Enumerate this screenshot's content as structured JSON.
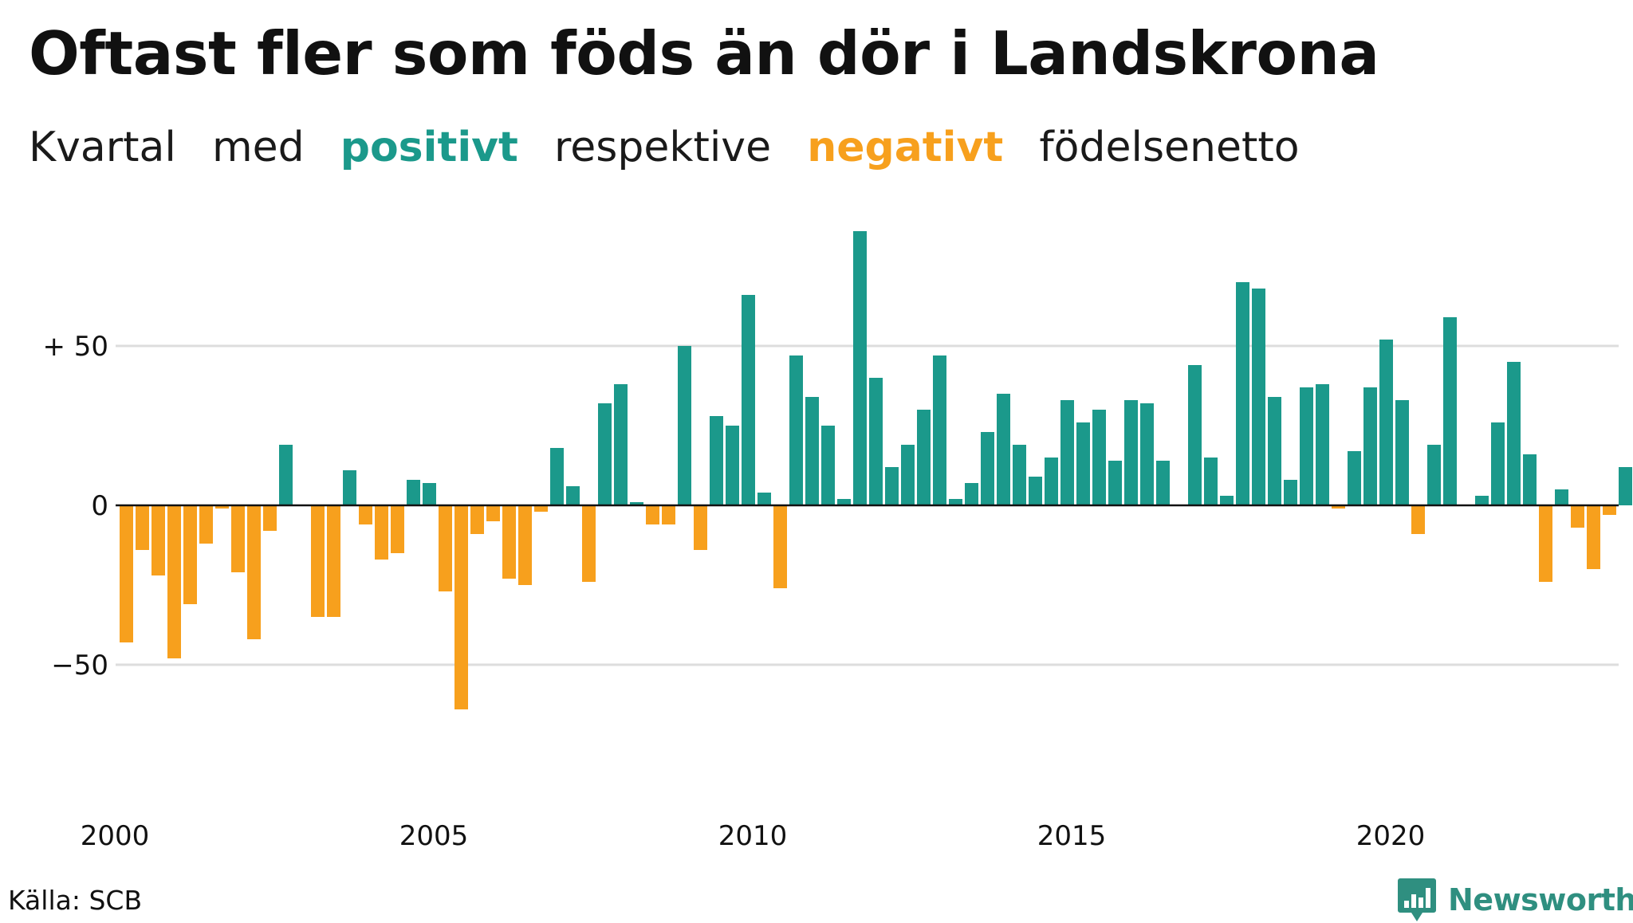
{
  "title": "Oftast fler som föds än dör i Landskrona",
  "subtitle": {
    "part1": "Kvartal",
    "part2": "med",
    "positive_word": "positivt",
    "part3": "respektive",
    "negative_word": "negativt",
    "part4": "födelsenetto"
  },
  "source": "Källa: SCB",
  "brand": {
    "name": "Newsworthy",
    "icon": "bar-chart-badge-icon"
  },
  "colors": {
    "positive": "#1b998b",
    "negative": "#f7a01d",
    "gridline": "#dddddd",
    "zero_line": "#111111",
    "brand": "#2f8f80"
  },
  "chart_data": {
    "type": "bar",
    "x_start_year": 2000,
    "periods_per_year": 4,
    "xticks": [
      "2000",
      "2005",
      "2010",
      "2015",
      "2020"
    ],
    "yticks": [
      {
        "value": 50,
        "label": "+ 50"
      },
      {
        "value": 0,
        "label": "0"
      },
      {
        "value": -50,
        "label": "−50"
      }
    ],
    "ylim": [
      -90,
      90
    ],
    "grid": true,
    "values": [
      -43,
      -14,
      -22,
      -48,
      -31,
      -12,
      -1,
      -21,
      -42,
      -8,
      19,
      0,
      -35,
      -35,
      11,
      -6,
      -17,
      -15,
      8,
      7,
      -27,
      -64,
      -9,
      -5,
      -23,
      -25,
      -2,
      18,
      6,
      -24,
      32,
      38,
      1,
      -6,
      -6,
      50,
      -14,
      28,
      25,
      66,
      4,
      -26,
      47,
      34,
      25,
      2,
      86,
      40,
      12,
      19,
      30,
      47,
      2,
      7,
      23,
      35,
      19,
      9,
      15,
      33,
      26,
      30,
      14,
      33,
      32,
      14,
      0,
      44,
      15,
      3,
      70,
      68,
      34,
      8,
      37,
      38,
      -1,
      17,
      37,
      52,
      33,
      -9,
      19,
      59,
      0,
      3,
      26,
      45,
      16,
      -24,
      5,
      -7,
      -20,
      -3,
      12
    ]
  }
}
